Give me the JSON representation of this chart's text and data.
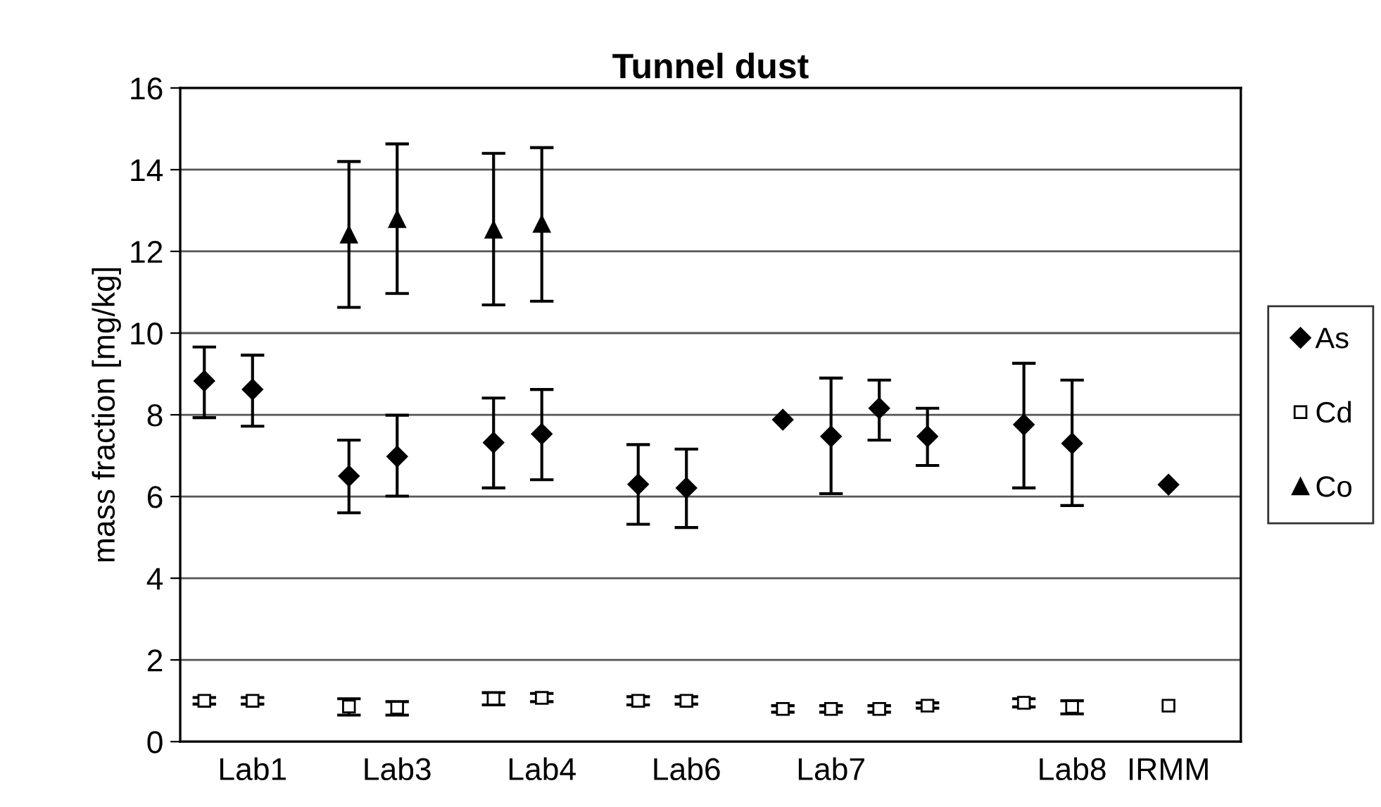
{
  "chart_data": {
    "type": "scatter",
    "title": "Tunnel dust",
    "ylabel": "mass fraction [mg/kg]",
    "categories": [
      null,
      "Lab1",
      null,
      null,
      "Lab3",
      null,
      null,
      "Lab4",
      null,
      null,
      "Lab6",
      null,
      null,
      "Lab7",
      null,
      null,
      null,
      null,
      "Lab8",
      null,
      "IRMM",
      null
    ],
    "ylim": [
      0,
      16
    ],
    "yticks": [
      0,
      2,
      4,
      6,
      8,
      10,
      12,
      14,
      16
    ],
    "grid": "y",
    "legend": "right",
    "series": [
      {
        "name": "As",
        "color": "#000000",
        "marker": "diamond",
        "values": [
          8.83,
          8.62,
          null,
          6.5,
          6.98,
          null,
          7.32,
          7.53,
          null,
          6.3,
          6.21,
          null,
          7.88,
          7.47,
          8.16,
          7.47,
          null,
          7.76,
          7.3,
          null,
          6.29,
          null
        ],
        "errors": [
          [
            7.93,
            9.66
          ],
          [
            7.72,
            9.46
          ],
          null,
          [
            5.6,
            7.38
          ],
          [
            6.01,
            7.99
          ],
          null,
          [
            6.21,
            8.41
          ],
          [
            6.41,
            8.62
          ],
          null,
          [
            5.32,
            7.27
          ],
          [
            5.24,
            7.16
          ],
          null,
          null,
          [
            6.07,
            8.9
          ],
          [
            7.38,
            8.85
          ],
          [
            6.76,
            8.16
          ],
          null,
          [
            6.21,
            9.26
          ],
          [
            5.78,
            8.85
          ],
          null,
          null,
          null
        ]
      },
      {
        "name": "Cd",
        "color": "#000000",
        "marker": "square",
        "values": [
          1.0,
          1.0,
          null,
          0.86,
          0.83,
          null,
          1.05,
          1.07,
          null,
          1.0,
          1.0,
          null,
          0.8,
          0.8,
          0.8,
          0.88,
          null,
          0.95,
          0.85,
          null,
          0.88,
          null
        ],
        "errors": [
          [
            0.92,
            1.08
          ],
          [
            0.92,
            1.08
          ],
          null,
          [
            0.65,
            1.05
          ],
          [
            0.65,
            0.98
          ],
          null,
          [
            0.9,
            1.2
          ],
          [
            0.98,
            1.18
          ],
          null,
          [
            0.9,
            1.1
          ],
          [
            0.92,
            1.1
          ],
          null,
          [
            0.72,
            0.88
          ],
          [
            0.72,
            0.88
          ],
          [
            0.72,
            0.88
          ],
          [
            0.82,
            0.95
          ],
          null,
          [
            0.85,
            1.05
          ],
          [
            0.68,
            1.0
          ],
          null,
          null,
          null
        ]
      },
      {
        "name": "Co",
        "color": "#000000",
        "marker": "triangle",
        "values": [
          null,
          null,
          null,
          12.41,
          12.79,
          null,
          12.53,
          12.67,
          null,
          null,
          null,
          null,
          null,
          null,
          null,
          null,
          null,
          null,
          null,
          null,
          null,
          null
        ],
        "errors": [
          null,
          null,
          null,
          [
            10.63,
            14.2
          ],
          [
            10.97,
            14.63
          ],
          null,
          [
            10.69,
            14.4
          ],
          [
            10.78,
            14.54
          ],
          null,
          null,
          null,
          null,
          null,
          null,
          null,
          null,
          null,
          null,
          null,
          null,
          null,
          null
        ]
      }
    ]
  }
}
